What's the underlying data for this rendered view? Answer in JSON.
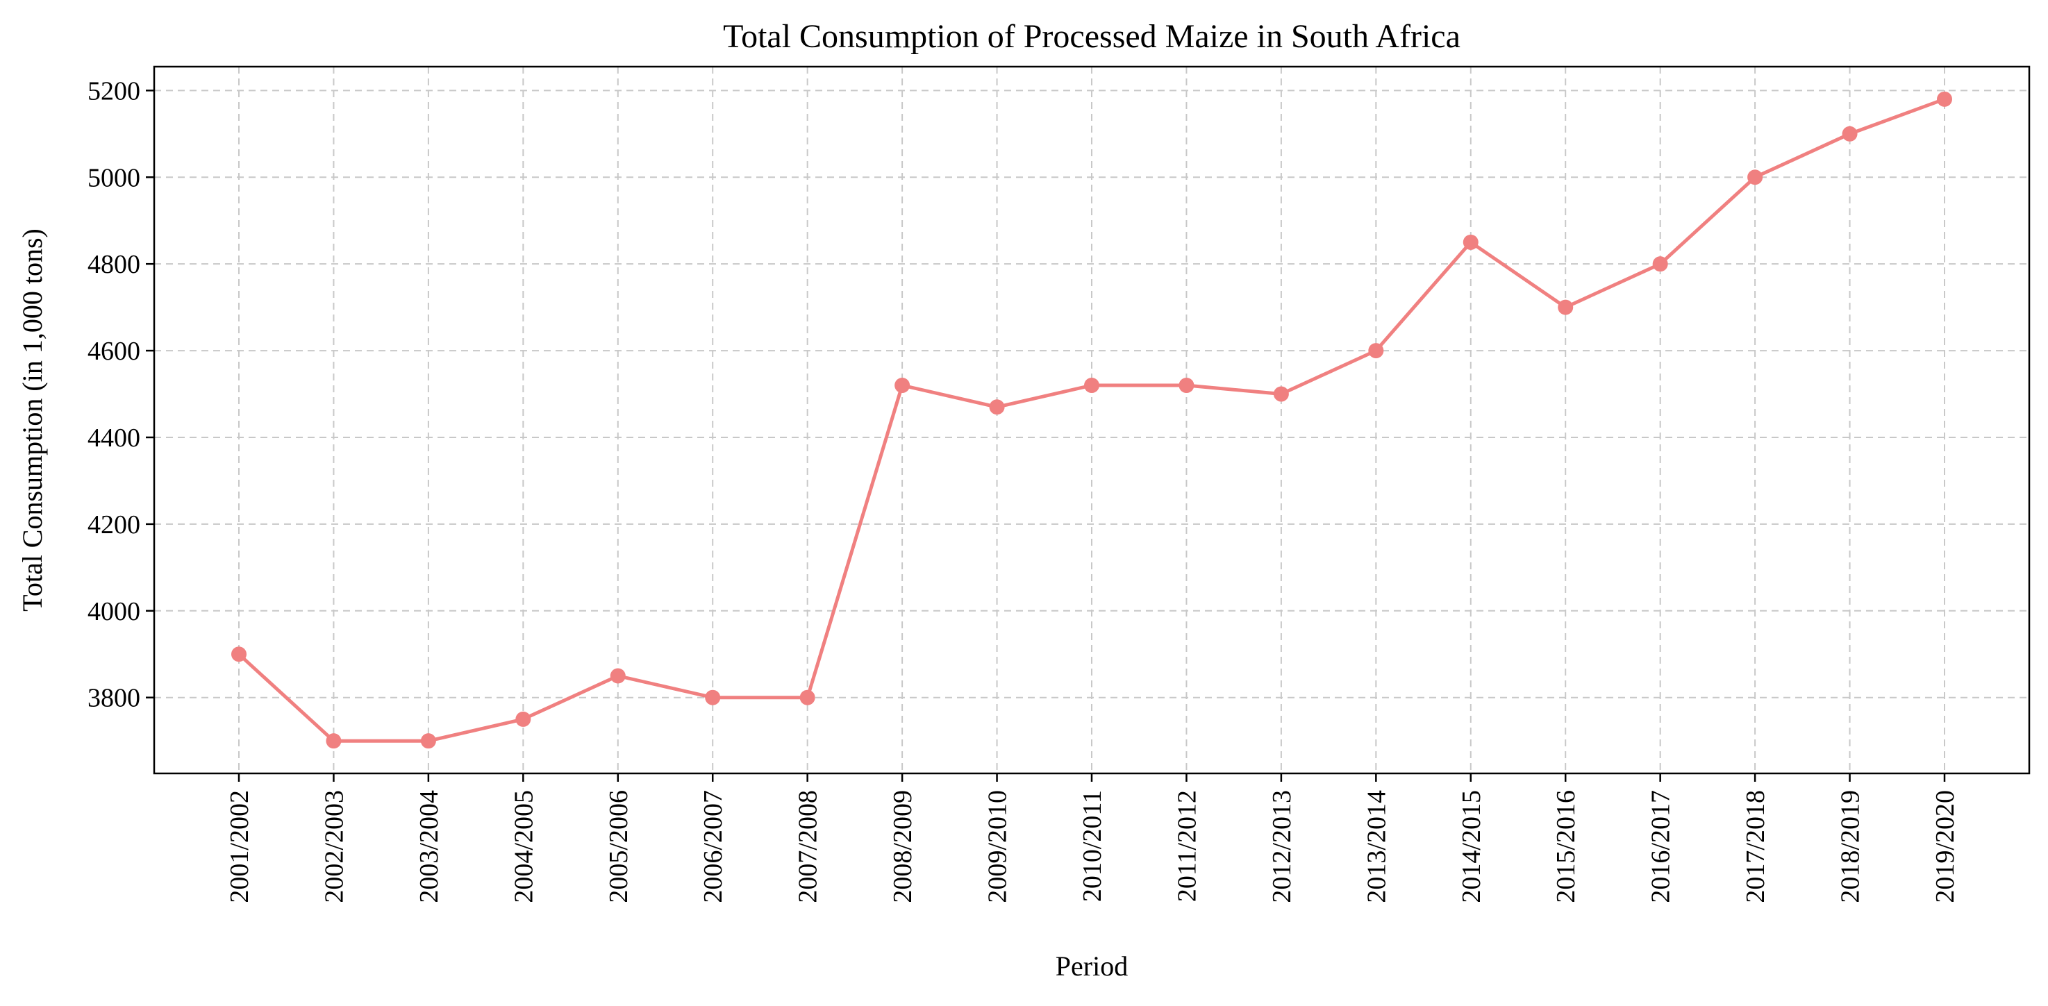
{
  "chart_data": {
    "type": "line",
    "title": "Total Consumption of Processed Maize in South Africa",
    "xlabel": "Period",
    "ylabel": "Total Consumption (in 1,000 tons)",
    "categories": [
      "2001/2002",
      "2002/2003",
      "2003/2004",
      "2004/2005",
      "2005/2006",
      "2006/2007",
      "2007/2008",
      "2008/2009",
      "2009/2010",
      "2010/2011",
      "2011/2012",
      "2012/2013",
      "2013/2014",
      "2014/2015",
      "2015/2016",
      "2016/2017",
      "2017/2018",
      "2018/2019",
      "2019/2020"
    ],
    "series": [
      {
        "values": [
          3900,
          3700,
          3700,
          3750,
          3850,
          3800,
          3800,
          4520,
          4470,
          4520,
          4520,
          4500,
          4600,
          4850,
          4700,
          4800,
          5000,
          5100,
          5180
        ],
        "color": "#f08080",
        "marker": "circle"
      }
    ],
    "ylim": [
      3625,
      5255
    ],
    "yticks": [
      3800,
      4000,
      4200,
      4400,
      4600,
      4800,
      5000,
      5200
    ],
    "grid": true,
    "grid_style": "dashed",
    "legend": "none"
  }
}
